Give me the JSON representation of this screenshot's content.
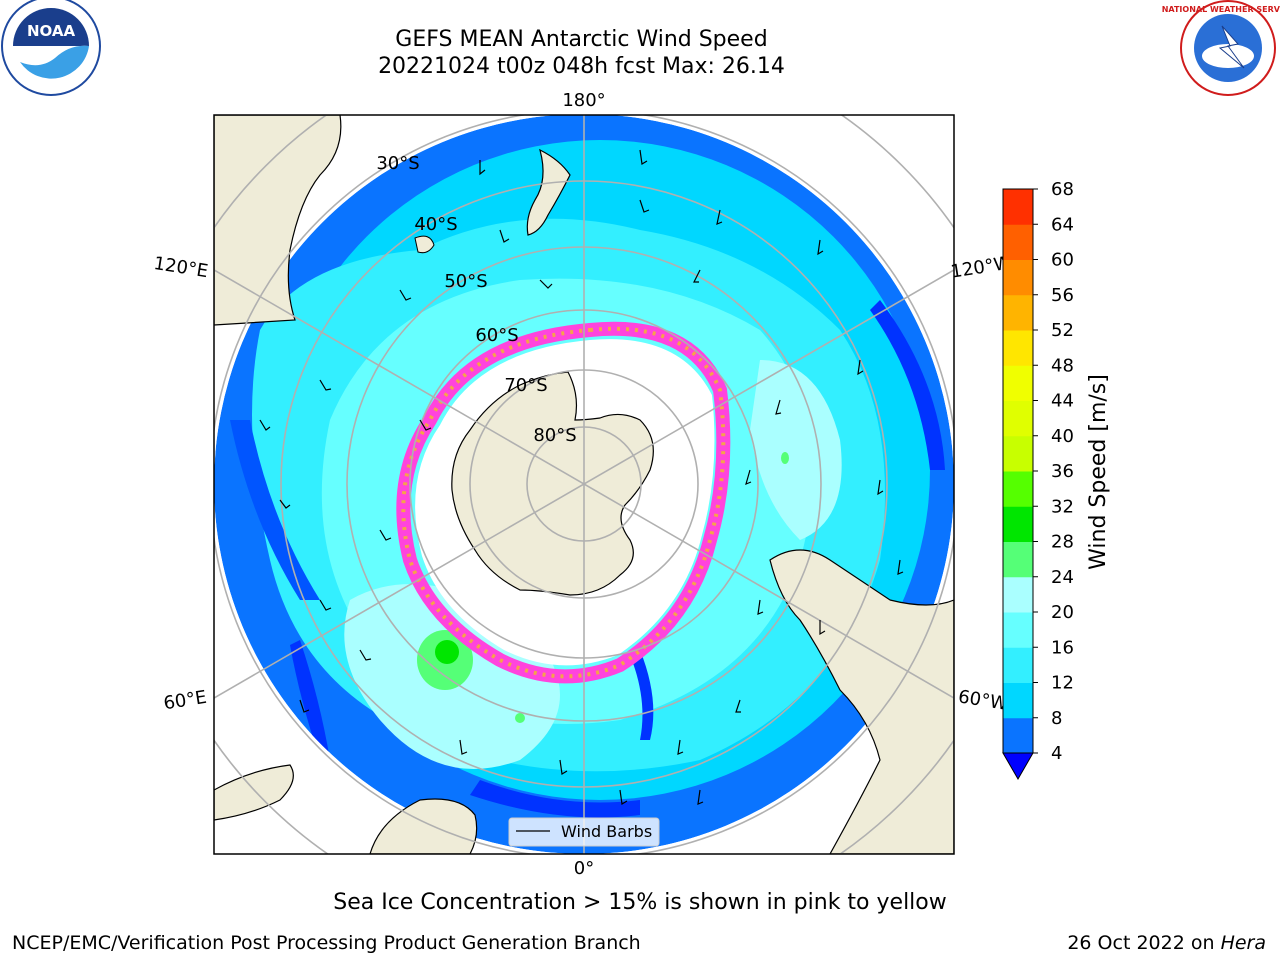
{
  "header": {
    "title_line1": "GEFS MEAN Antarctic Wind Speed",
    "title_line2": "20221024 t00z 048h fcst   Max: 26.14"
  },
  "logos": {
    "left_text": "NOAA",
    "right_text": "NATIONAL WEATHER SERVICE"
  },
  "map": {
    "projection": "south-polar-stereographic",
    "longitude_labels": [
      "180°",
      "120°E",
      "120°W",
      "60°E",
      "60°W",
      "0°"
    ],
    "latitude_labels": [
      "30°S",
      "40°S",
      "50°S",
      "60°S",
      "70°S",
      "80°S"
    ],
    "legend_label": "Wind Barbs",
    "colors": {
      "land": "#efecd8",
      "sea_ice_low": "#ff44dd",
      "sea_ice_high": "#f5a34a",
      "antarctic_ice_blank": "#ffffff",
      "grid": "#b0b0b0"
    }
  },
  "colorbar": {
    "label": "Wind Speed [m/s]",
    "ticks": [
      "4",
      "8",
      "12",
      "16",
      "20",
      "24",
      "28",
      "32",
      "36",
      "40",
      "44",
      "48",
      "52",
      "56",
      "60",
      "64",
      "68"
    ],
    "colors": [
      "#0a74ff",
      "#00d7ff",
      "#33efff",
      "#66ffff",
      "#aaffff",
      "#55ff77",
      "#00e600",
      "#55ff00",
      "#c8ff00",
      "#e0ff00",
      "#f0ff00",
      "#ffe600",
      "#ffb400",
      "#ff8c00",
      "#ff6000",
      "#ff3000"
    ],
    "under_color": "#0000ff"
  },
  "footer": {
    "note": "Sea Ice Concentration > 15% is shown in pink to yellow",
    "credit_left": "NCEP/EMC/Verification Post Processing Product Generation Branch",
    "date": "26 Oct 2022 on",
    "machine": "Hera"
  }
}
